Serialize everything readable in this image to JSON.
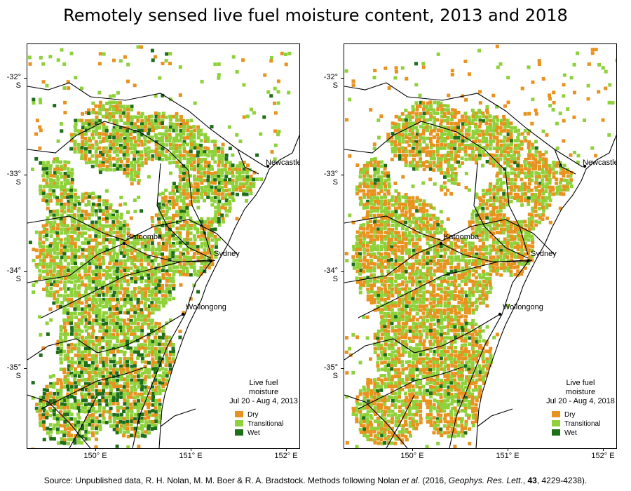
{
  "title": "Remotely sensed live fuel moisture content, 2013 and 2018",
  "lat_labels": [
    "-32° S",
    "-33° S",
    "-34° S",
    "-35° S"
  ],
  "lon_labels": [
    "150° E",
    "151° E",
    "152° E"
  ],
  "cities": {
    "newcastle": "Newcastle",
    "katoomba": "Katoomba",
    "sydney": "Sydney",
    "wollongong": "Wollongong"
  },
  "maps": [
    {
      "legend_title_1": "Live fuel",
      "legend_title_2": "moisture",
      "period": "Jul 20 - Aug 4, 2013",
      "mix": {
        "dry": 0.3,
        "transitional": 0.58,
        "wet": 0.12
      }
    },
    {
      "legend_title_1": "Live fuel",
      "legend_title_2": "moisture",
      "period": "Jul 20 - Aug 4, 2018",
      "mix": {
        "dry": 0.48,
        "transitional": 0.48,
        "wet": 0.04
      }
    }
  ],
  "legend": {
    "dry": "Dry",
    "transitional": "Transitional",
    "wet": "Wet"
  },
  "colors": {
    "dry": "#e8921f",
    "transitional": "#8fd13a",
    "wet": "#1f6e1a"
  },
  "source": {
    "prefix": "Source: Unpublished data, R. H. Nolan, M. M. Boer & R. A. Bradstock. Methods following Nolan ",
    "etal": "et al",
    "mid": ". (2016, ",
    "journal": "Geophys. Res. Lett.",
    "sep": ", ",
    "volume": "43",
    "suffix": ", 4229-4238)."
  }
}
